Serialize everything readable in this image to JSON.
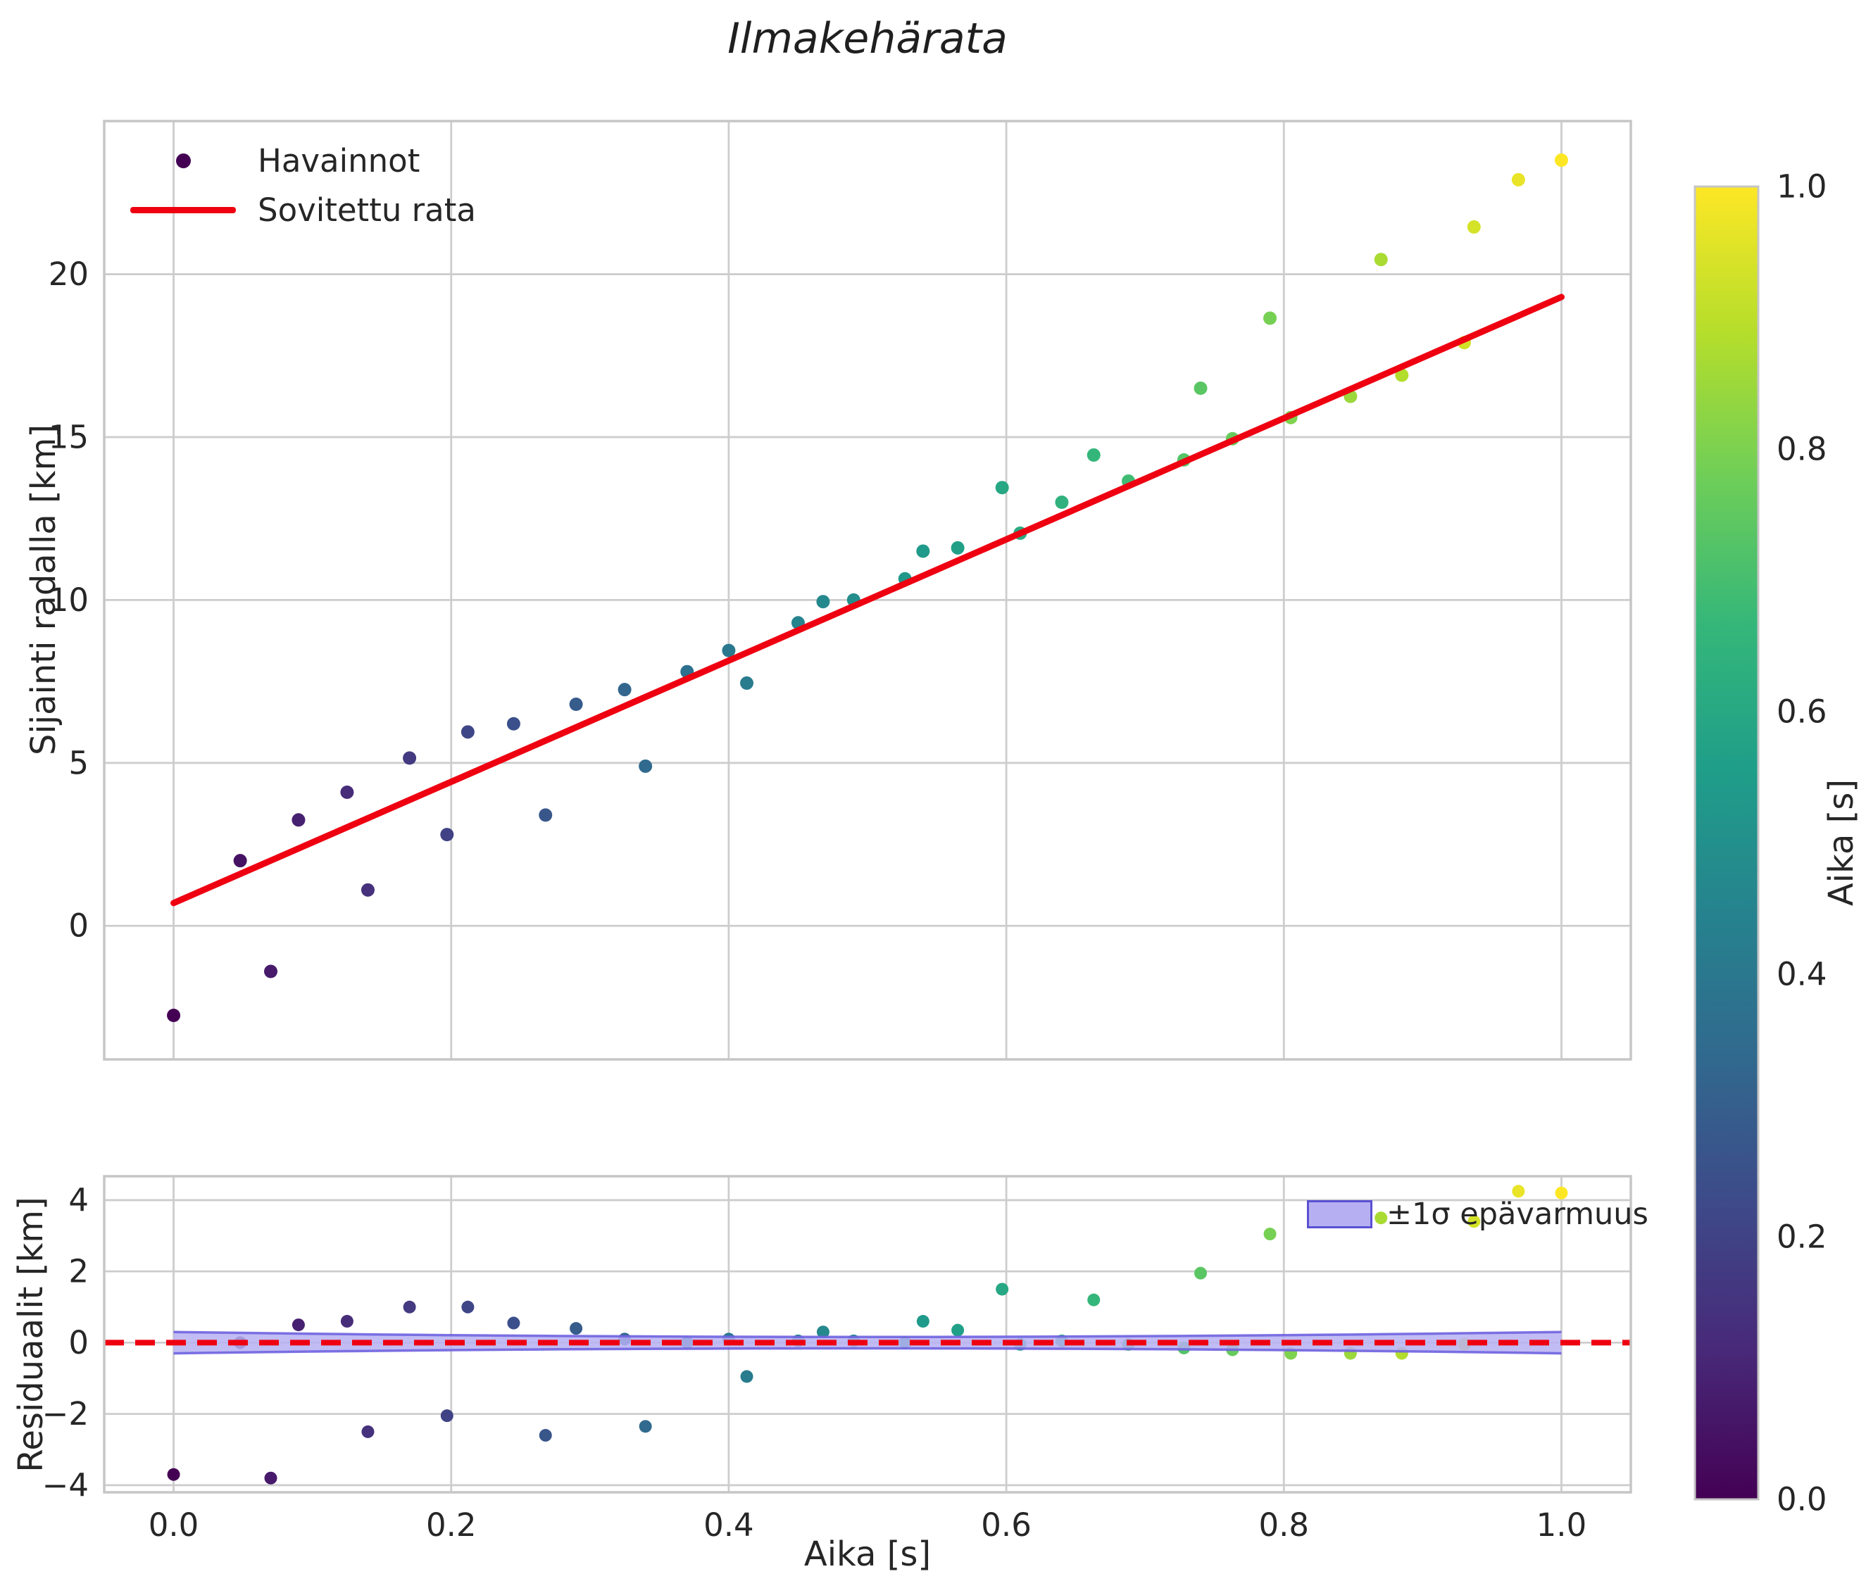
{
  "title": "Ilmakehärata",
  "colors": {
    "background": "#ffffff",
    "grid": "#cdcdcd",
    "axes_border": "#c6c6c6",
    "text": "#262626",
    "fit_line_red": "#ee0011",
    "band_fill": "#b6b0f2",
    "band_edge": "#6f63e0",
    "legend_patch_border": "#5a50d2"
  },
  "chart_data": [
    {
      "type": "scatter",
      "title": "Ilmakehärata",
      "xlabel": "",
      "ylabel": "Sijainti radalla [km]",
      "xlim": [
        -0.05,
        1.05
      ],
      "ylim": [
        -4.1,
        24.7
      ],
      "x_ticks": [
        0.0,
        0.2,
        0.4,
        0.6,
        0.8,
        1.0
      ],
      "y_ticks": [
        0,
        5,
        10,
        15,
        20
      ],
      "grid": true,
      "legend": [
        "Havainnot",
        "Sovitettu rata"
      ],
      "legend_position": "upper left",
      "colormap": "viridis",
      "color_by": "t",
      "x": [
        0.0,
        0.048,
        0.07,
        0.09,
        0.125,
        0.14,
        0.17,
        0.197,
        0.212,
        0.245,
        0.268,
        0.29,
        0.325,
        0.34,
        0.37,
        0.4,
        0.413,
        0.45,
        0.468,
        0.49,
        0.527,
        0.54,
        0.565,
        0.597,
        0.61,
        0.64,
        0.663,
        0.688,
        0.728,
        0.74,
        0.763,
        0.79,
        0.805,
        0.848,
        0.87,
        0.885,
        0.93,
        0.937,
        0.969,
        1.0
      ],
      "y": [
        -2.75,
        2.0,
        -1.4,
        3.25,
        4.1,
        1.1,
        5.15,
        2.8,
        5.95,
        6.2,
        3.4,
        6.8,
        7.25,
        4.9,
        7.8,
        8.45,
        7.45,
        9.3,
        9.95,
        10.0,
        10.65,
        11.5,
        11.6,
        13.45,
        12.05,
        13.0,
        14.45,
        13.65,
        14.3,
        16.5,
        14.95,
        18.65,
        15.6,
        16.25,
        20.45,
        16.9,
        17.9,
        21.45,
        22.9,
        23.5
      ],
      "fit_line": {
        "intercept": 0.7,
        "slope": 18.6,
        "t_start": 0.0,
        "t_end": 1.0
      }
    },
    {
      "type": "scatter",
      "xlabel": "Aika [s]",
      "ylabel": "Residuaalit [km]",
      "xlim": [
        -0.05,
        1.05
      ],
      "ylim": [
        -4.2,
        4.67
      ],
      "x_ticks": [
        0.0,
        0.2,
        0.4,
        0.6,
        0.8,
        1.0
      ],
      "y_ticks": [
        -4,
        -2,
        0,
        2,
        4
      ],
      "grid": true,
      "legend": [
        "±1σ epävarmuus"
      ],
      "legend_position": "upper right",
      "colormap": "viridis",
      "color_by": "t",
      "x": [
        0.0,
        0.048,
        0.07,
        0.09,
        0.125,
        0.14,
        0.17,
        0.197,
        0.212,
        0.245,
        0.268,
        0.29,
        0.325,
        0.34,
        0.37,
        0.4,
        0.413,
        0.45,
        0.468,
        0.49,
        0.527,
        0.54,
        0.565,
        0.597,
        0.61,
        0.64,
        0.663,
        0.688,
        0.728,
        0.74,
        0.763,
        0.79,
        0.805,
        0.848,
        0.87,
        0.885,
        0.93,
        0.937,
        0.969,
        1.0
      ],
      "y": [
        -3.7,
        0.0,
        -3.8,
        0.5,
        0.6,
        -2.5,
        1.0,
        -2.05,
        1.0,
        0.55,
        -2.6,
        0.4,
        0.1,
        -2.35,
        0.0,
        0.1,
        -0.95,
        0.05,
        0.3,
        0.05,
        0.0,
        0.6,
        0.35,
        1.5,
        -0.05,
        0.05,
        1.2,
        -0.05,
        -0.15,
        1.95,
        -0.2,
        3.05,
        -0.3,
        -0.3,
        3.5,
        -0.3,
        -0.05,
        3.4,
        4.25,
        4.2
      ],
      "zero_line": {
        "value": 0,
        "style": "dashed",
        "color": "#ee0011"
      },
      "band": {
        "center": 0,
        "half_width_mid_km": 0.16,
        "half_width_end_km": 0.3,
        "t_start": 0.0,
        "t_end": 1.0
      }
    }
  ],
  "colorbar": {
    "label": "Aika [s]",
    "ticks": [
      0.0,
      0.2,
      0.4,
      0.6,
      0.8,
      1.0
    ],
    "range": [
      0.0,
      1.0
    ],
    "colormap": "viridis",
    "stops": [
      [
        0.0,
        "#440154"
      ],
      [
        0.111,
        "#482878"
      ],
      [
        0.222,
        "#3e4989"
      ],
      [
        0.333,
        "#31688e"
      ],
      [
        0.444,
        "#26828e"
      ],
      [
        0.556,
        "#1f9e89"
      ],
      [
        0.667,
        "#35b779"
      ],
      [
        0.778,
        "#6ece58"
      ],
      [
        0.889,
        "#b5de2b"
      ],
      [
        1.0,
        "#fde725"
      ]
    ]
  }
}
